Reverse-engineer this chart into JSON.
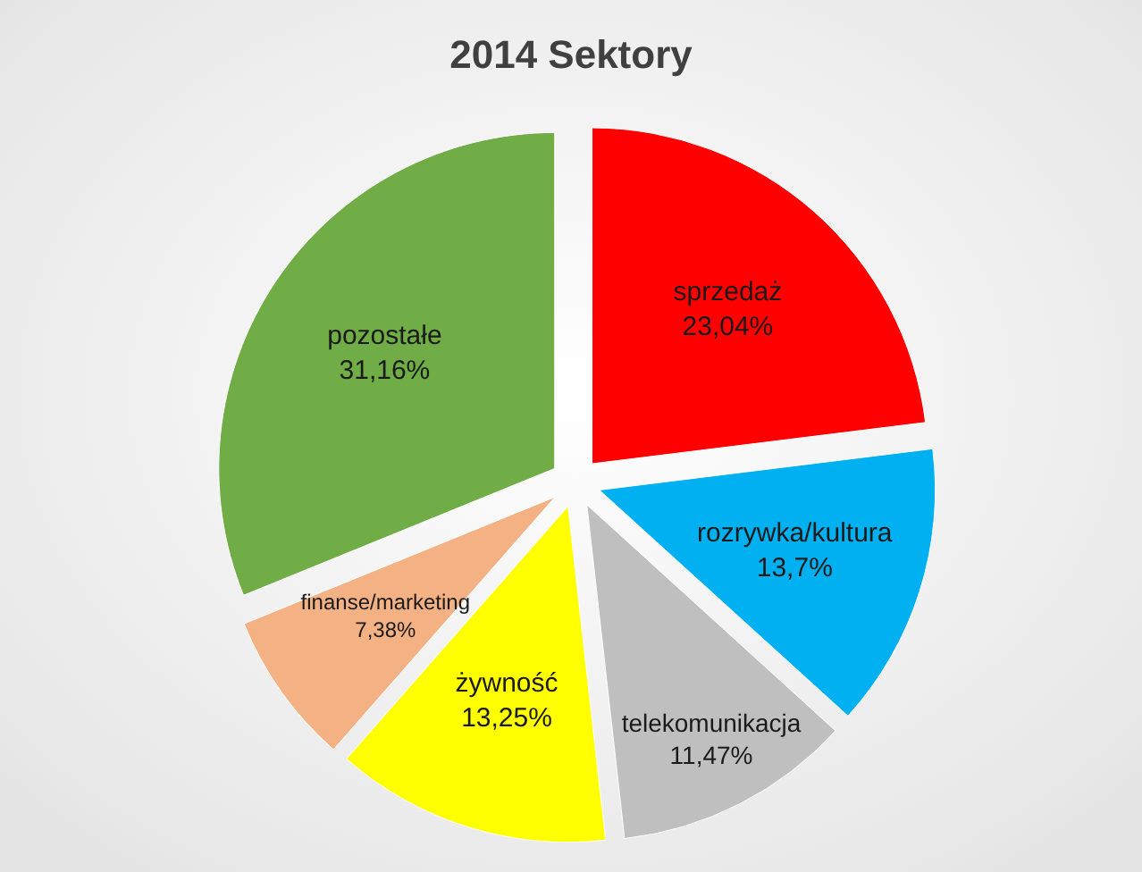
{
  "chart_data": {
    "type": "pie",
    "title": "2014 Sektory",
    "categories": [
      "sprzedaż",
      "rozrywka/kultura",
      "telekomunikacja",
      "żywność",
      "finanse/marketing",
      "pozostałe"
    ],
    "values": [
      23.04,
      13.7,
      11.47,
      13.25,
      7.38,
      31.16
    ],
    "colors": [
      "#ff0000",
      "#00b0f0",
      "#bfbfbf",
      "#ffff00",
      "#f4b183",
      "#70ad47"
    ],
    "value_labels": [
      "23,04%",
      "13,7%",
      "11,47%",
      "13,25%",
      "7,38%",
      "31,16%"
    ]
  }
}
